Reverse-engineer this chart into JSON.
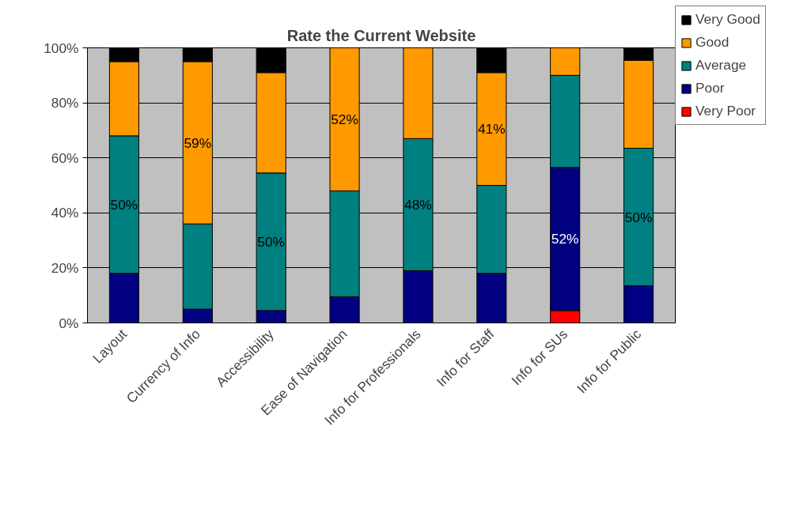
{
  "chart_data": {
    "type": "bar",
    "title": "Rate the Current Website",
    "stacked": true,
    "categories": [
      "Layout",
      "Currency of Info",
      "Accessibility",
      "Ease of Navigation",
      "Info for Professionals",
      "Info for Staff",
      "Info for SUs",
      "Info for Public"
    ],
    "series": [
      {
        "name": "Very Poor",
        "color": "#ff0000",
        "values": [
          0,
          0,
          0,
          0,
          0,
          0,
          4.5,
          0
        ],
        "value_labels": [
          null,
          null,
          null,
          null,
          null,
          null,
          null,
          null
        ]
      },
      {
        "name": "Poor",
        "color": "#000080",
        "values": [
          18,
          5,
          4.5,
          9.5,
          19,
          18,
          52,
          13.5
        ],
        "value_labels": [
          null,
          null,
          null,
          null,
          null,
          null,
          "52%",
          null
        ]
      },
      {
        "name": "Average",
        "color": "#008080",
        "values": [
          50,
          31,
          50,
          38.5,
          48,
          32,
          33.5,
          50
        ],
        "value_labels": [
          "50%",
          null,
          "50%",
          null,
          "48%",
          null,
          null,
          "50%"
        ]
      },
      {
        "name": "Good",
        "color": "#ff9900",
        "values": [
          27,
          59,
          36.5,
          52,
          33,
          41,
          10,
          32
        ],
        "value_labels": [
          null,
          "59%",
          null,
          "52%",
          null,
          "41%",
          null,
          null
        ]
      },
      {
        "name": "Very Good",
        "color": "#000000",
        "values": [
          5,
          5,
          9,
          0,
          0,
          9,
          0,
          4.5
        ],
        "value_labels": [
          null,
          null,
          null,
          null,
          null,
          null,
          null,
          null
        ]
      }
    ],
    "ylim": [
      0,
      100
    ],
    "yticks": [
      {
        "value": 0,
        "label": "0%"
      },
      {
        "value": 20,
        "label": "20%"
      },
      {
        "value": 40,
        "label": "40%"
      },
      {
        "value": 60,
        "label": "60%"
      },
      {
        "value": 80,
        "label": "80%"
      },
      {
        "value": 100,
        "label": "100%"
      }
    ],
    "grid": "y",
    "legend": "right"
  }
}
